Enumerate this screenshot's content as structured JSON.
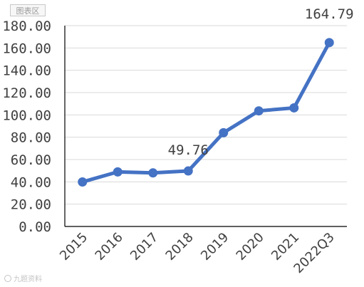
{
  "chip_label": "图表区",
  "watermark": "九题资料",
  "colors": {
    "line": "#4472C4",
    "axis": "#000000",
    "grid": "#d9d9d9",
    "text": "#404040"
  },
  "chart_data": {
    "type": "line",
    "title": "",
    "xlabel": "",
    "ylabel": "",
    "categories": [
      "2015",
      "2016",
      "2017",
      "2018",
      "2019",
      "2020",
      "2021",
      "2022Q3"
    ],
    "series": [
      {
        "values": [
          39.9,
          48.9,
          48.0,
          49.76,
          84.0,
          103.6,
          106.3,
          164.79
        ]
      }
    ],
    "ylim": [
      0,
      180
    ],
    "yticks": [
      "0.00",
      "20.00",
      "40.00",
      "60.00",
      "80.00",
      "100.00",
      "120.00",
      "140.00",
      "160.00",
      "180.00"
    ],
    "data_labels": [
      {
        "index": 3,
        "text": "49.76"
      },
      {
        "index": 7,
        "text": "164.79"
      }
    ],
    "grid": true,
    "legend": "none"
  }
}
